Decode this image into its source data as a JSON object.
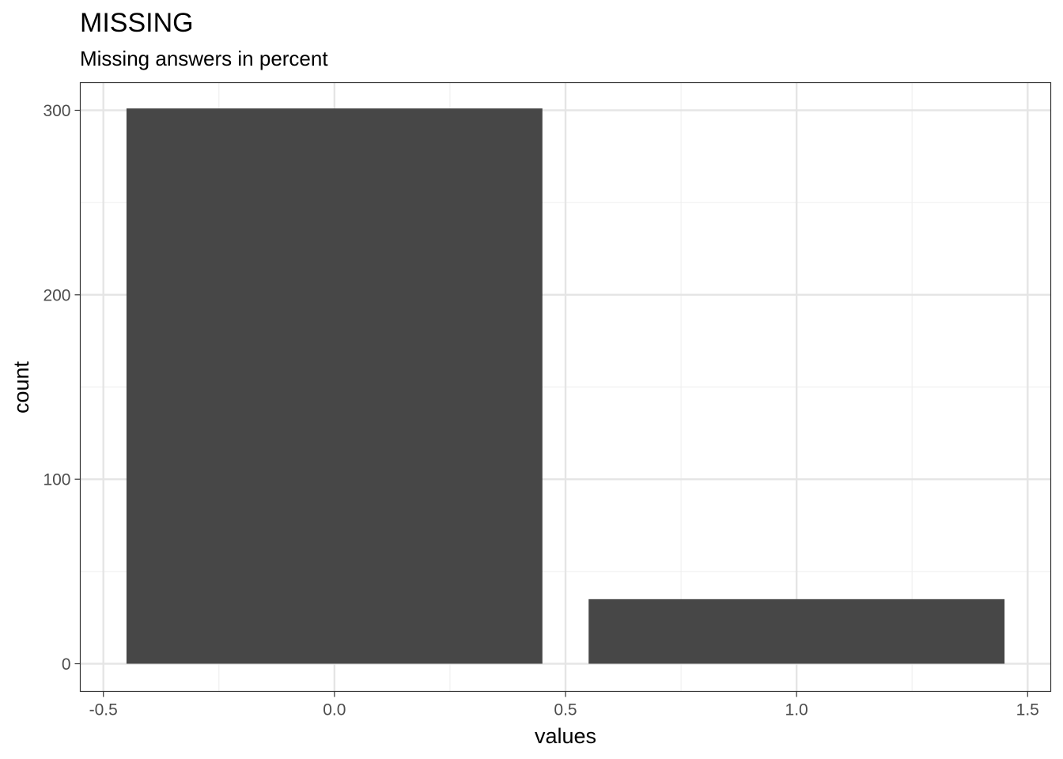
{
  "chart_data": {
    "type": "bar",
    "title": "MISSING",
    "subtitle": "Missing answers in percent",
    "xlabel": "values",
    "ylabel": "count",
    "x": [
      0,
      1
    ],
    "values": [
      301,
      35
    ],
    "bar_width": 0.9,
    "xlim": [
      -0.55,
      1.55
    ],
    "ylim": [
      -15,
      315
    ],
    "x_ticks": [
      -0.5,
      0.0,
      0.5,
      1.0,
      1.5
    ],
    "x_tick_labels": [
      "-0.5",
      "0.0",
      "0.5",
      "1.0",
      "1.5"
    ],
    "x_minor_ticks": [
      -0.25,
      0.25,
      0.75,
      1.25
    ],
    "y_ticks": [
      0,
      100,
      200,
      300
    ],
    "y_tick_labels": [
      "0",
      "100",
      "200",
      "300"
    ],
    "y_minor_ticks": [
      50,
      150,
      250
    ],
    "grid": true,
    "legend": "none",
    "colors": {
      "bar": "#474747",
      "grid_major": "#e5e5e5",
      "grid_minor": "#f0f0f0",
      "panel_border": "#333333",
      "tick_label": "#4d4d4d"
    }
  }
}
